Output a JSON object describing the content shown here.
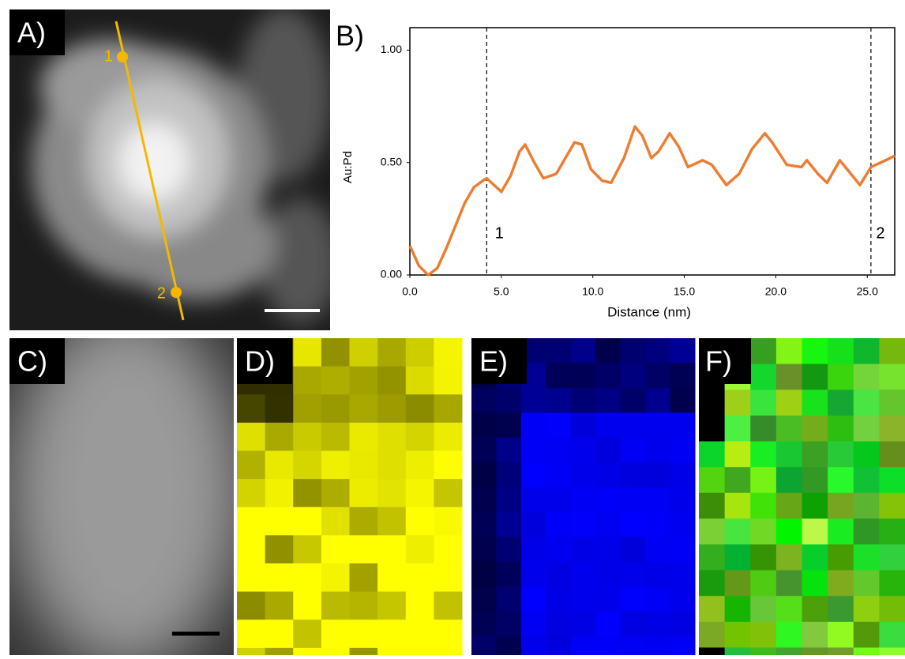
{
  "figure": {
    "panel_labels": [
      "A)",
      "B)",
      "C)",
      "D)",
      "E)",
      "F)"
    ],
    "line_points": [
      "1",
      "2"
    ]
  },
  "chart_data": {
    "type": "line",
    "y_label": "Au:Pd",
    "x_label": "Distance (nm)",
    "x": [
      0,
      0.5,
      1.0,
      1.5,
      2,
      2.5,
      3,
      3.5,
      4,
      4.2,
      4.6,
      5.0,
      5.5,
      6.0,
      6.3,
      6.8,
      7.3,
      8,
      8.5,
      9,
      9.4,
      9.9,
      10.5,
      11,
      11.7,
      12.3,
      12.7,
      13.2,
      13.6,
      14.2,
      14.7,
      15.2,
      16,
      16.5,
      17.3,
      18,
      18.7,
      19.4,
      19.8,
      20.6,
      21.4,
      21.7,
      22.3,
      22.8,
      23.5,
      24,
      24.6,
      25.2,
      26,
      26.5
    ],
    "series": [
      {
        "color": "#ed7d31",
        "values": [
          0.13,
          0.04,
          0.0,
          0.03,
          0.12,
          0.22,
          0.32,
          0.39,
          0.42,
          0.43,
          0.4,
          0.37,
          0.44,
          0.55,
          0.58,
          0.5,
          0.43,
          0.45,
          0.52,
          0.59,
          0.58,
          0.47,
          0.42,
          0.41,
          0.52,
          0.66,
          0.62,
          0.52,
          0.55,
          0.63,
          0.57,
          0.48,
          0.51,
          0.49,
          0.4,
          0.45,
          0.56,
          0.63,
          0.59,
          0.49,
          0.48,
          0.51,
          0.45,
          0.41,
          0.51,
          0.46,
          0.4,
          0.48,
          0.51,
          0.53
        ]
      }
    ],
    "markers": [
      {
        "x": 4.2,
        "label": "1"
      },
      {
        "x": 25.2,
        "label": "2"
      }
    ],
    "xlim": [
      0,
      26.5
    ],
    "ylim": [
      0,
      1.1
    ],
    "xticks": [
      {
        "value": 0,
        "label": "0.0"
      },
      {
        "value": 5,
        "label": "5.0"
      },
      {
        "value": 10,
        "label": "10.0"
      },
      {
        "value": 15,
        "label": "15.0"
      },
      {
        "value": 20,
        "label": "20.0"
      },
      {
        "value": 25,
        "label": "25.0"
      }
    ],
    "yticks": [
      {
        "value": 0,
        "label": "0.00"
      },
      {
        "value": 0.5,
        "label": "0.50"
      },
      {
        "value": 1,
        "label": "1.00"
      }
    ]
  }
}
